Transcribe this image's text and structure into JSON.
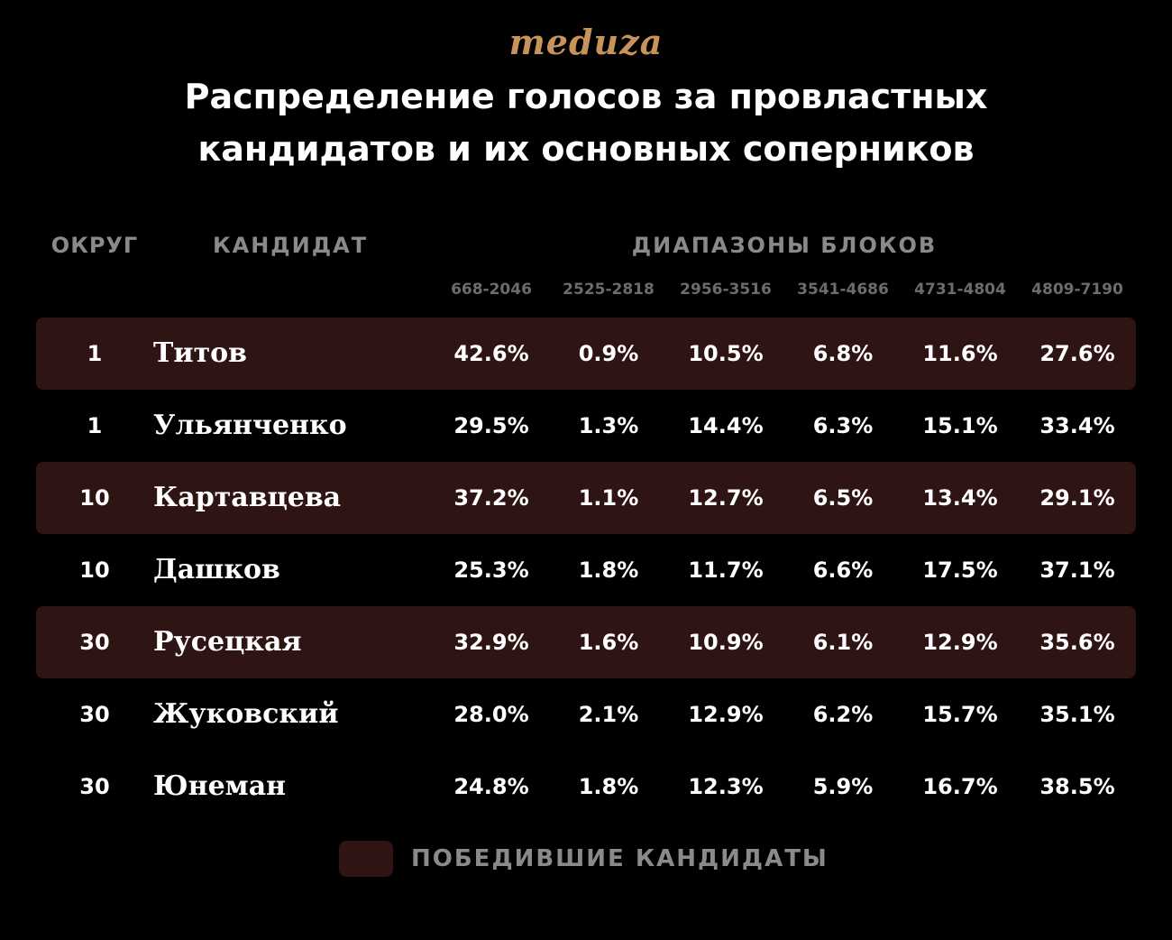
{
  "logo": "meduza",
  "colors": {
    "background": "#000000",
    "winner_row": "#2f1414",
    "logo": "#c8935a",
    "header_text": "#8a8a8a",
    "range_text": "#6c6c6c",
    "cell_text": "#ffffff"
  },
  "chart_data": {
    "type": "table",
    "title": [
      "Распределение голосов за провластных",
      "кандидатов и их основных соперников"
    ],
    "headers": {
      "district": "ОКРУГ",
      "candidate": "КАНДИДАТ",
      "ranges": "ДИАПАЗОНЫ БЛОКОВ"
    },
    "columns": [
      "668-2046",
      "2525-2818",
      "2956-3516",
      "3541-4686",
      "4731-4804",
      "4809-7190"
    ],
    "rows": [
      {
        "district": "1",
        "name": "Титов",
        "winner": true,
        "values": [
          "42.6%",
          "0.9%",
          "10.5%",
          "6.8%",
          "11.6%",
          "27.6%"
        ]
      },
      {
        "district": "1",
        "name": "Ульянченко",
        "winner": false,
        "values": [
          "29.5%",
          "1.3%",
          "14.4%",
          "6.3%",
          "15.1%",
          "33.4%"
        ]
      },
      {
        "district": "10",
        "name": "Картавцева",
        "winner": true,
        "values": [
          "37.2%",
          "1.1%",
          "12.7%",
          "6.5%",
          "13.4%",
          "29.1%"
        ]
      },
      {
        "district": "10",
        "name": "Дашков",
        "winner": false,
        "values": [
          "25.3%",
          "1.8%",
          "11.7%",
          "6.6%",
          "17.5%",
          "37.1%"
        ]
      },
      {
        "district": "30",
        "name": "Русецкая",
        "winner": true,
        "values": [
          "32.9%",
          "1.6%",
          "10.9%",
          "6.1%",
          "12.9%",
          "35.6%"
        ]
      },
      {
        "district": "30",
        "name": "Жуковский",
        "winner": false,
        "values": [
          "28.0%",
          "2.1%",
          "12.9%",
          "6.2%",
          "15.7%",
          "35.1%"
        ]
      },
      {
        "district": "30",
        "name": "Юнеман",
        "winner": false,
        "values": [
          "24.8%",
          "1.8%",
          "12.3%",
          "5.9%",
          "16.7%",
          "38.5%"
        ]
      }
    ],
    "legend": "ПОБЕДИВШИЕ КАНДИДАТЫ"
  }
}
